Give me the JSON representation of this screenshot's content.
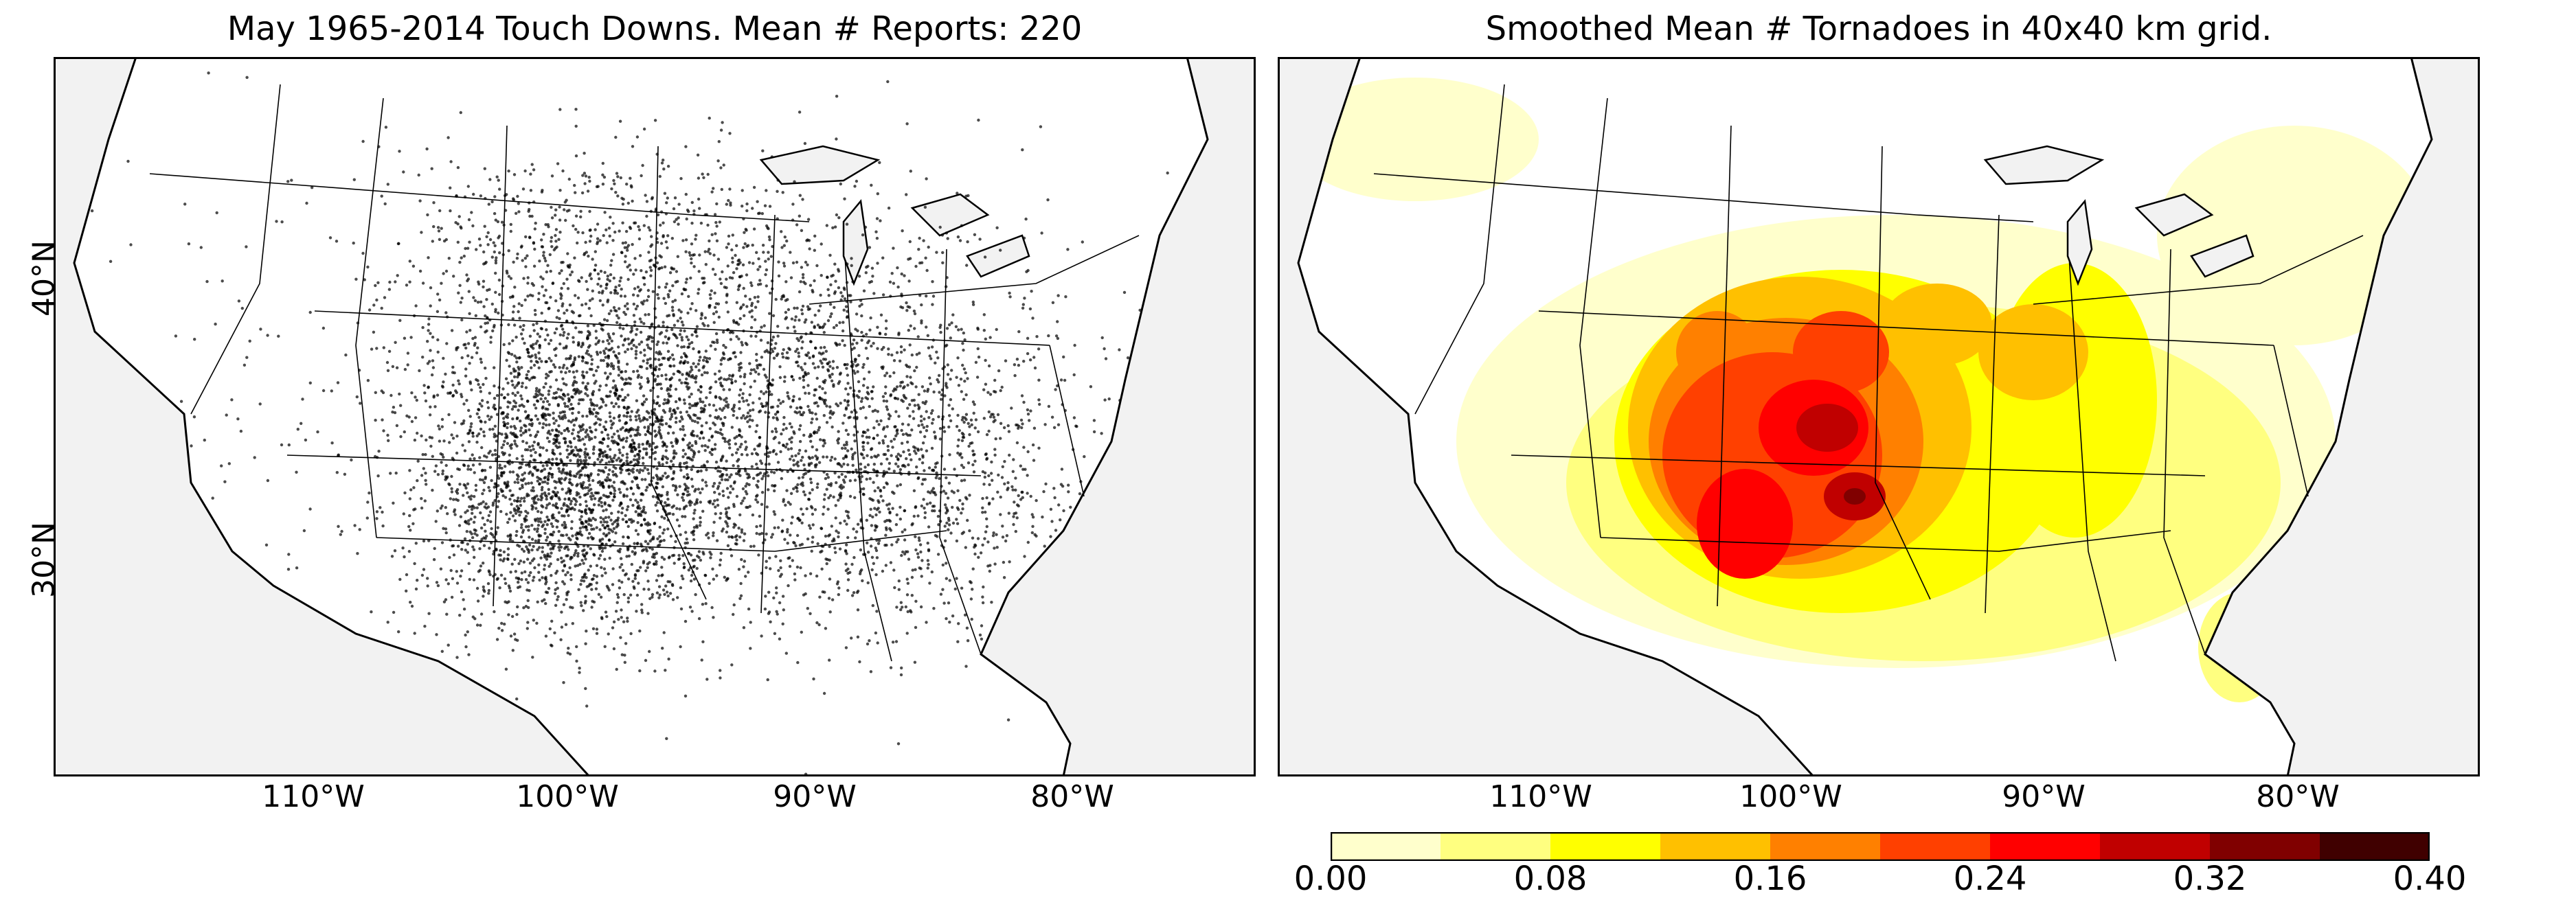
{
  "left_panel": {
    "title": "May 1965-2014 Touch Downs. Mean # Reports: 220"
  },
  "right_panel": {
    "title": "Smoothed Mean # Tornadoes in 40x40 km grid."
  },
  "axes": {
    "lat_ticks": [
      "40°N",
      "30°N"
    ],
    "lon_ticks": [
      "110°W",
      "100°W",
      "90°W",
      "80°W"
    ]
  },
  "colorbar": {
    "tick_labels": [
      "0.00",
      "0.08",
      "0.16",
      "0.24",
      "0.32",
      "0.40"
    ],
    "range": [
      0.0,
      0.4
    ],
    "levels": [
      0.0,
      0.04,
      0.08,
      0.12,
      0.16,
      0.2,
      0.24,
      0.28,
      0.32,
      0.36,
      0.4
    ],
    "colors": [
      "#ffffcc",
      "#ffff80",
      "#ffff00",
      "#ffc000",
      "#ff8000",
      "#ff4000",
      "#ff0000",
      "#c00000",
      "#800000",
      "#400000"
    ]
  },
  "colors": {
    "ocean": "#f2f2f2",
    "land": "#ffffff",
    "border": "#000000",
    "dots": "#000000"
  }
}
